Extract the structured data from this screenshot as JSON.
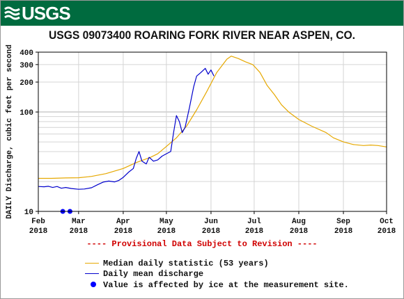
{
  "banner": {
    "logo_text": "USGS",
    "logo_icon": "usgs-wave-icon",
    "background": "#006b3f"
  },
  "chart_data": {
    "type": "line",
    "title": "USGS 09073400 ROARING FORK RIVER NEAR ASPEN, CO.",
    "ylabel": "DAILY Discharge, cubic feet per second",
    "yscale": "log",
    "ylim": [
      10,
      400
    ],
    "xlim": [
      "2018-02-01",
      "2018-10-01"
    ],
    "y_ticks": [
      10,
      100,
      200,
      300,
      400
    ],
    "y_tick_labels": [
      "10",
      "100",
      "200",
      "300",
      "400"
    ],
    "x_ticks": [
      "2018-02-01",
      "2018-03-01",
      "2018-04-01",
      "2018-05-01",
      "2018-06-01",
      "2018-07-01",
      "2018-08-01",
      "2018-09-01",
      "2018-10-01"
    ],
    "x_tick_labels": [
      [
        "Feb",
        "2018"
      ],
      [
        "Mar",
        "2018"
      ],
      [
        "Apr",
        "2018"
      ],
      [
        "May",
        "2018"
      ],
      [
        "Jun",
        "2018"
      ],
      [
        "Jul",
        "2018"
      ],
      [
        "Aug",
        "2018"
      ],
      [
        "Sep",
        "2018"
      ],
      [
        "Oct",
        "2018"
      ]
    ],
    "grid": true,
    "series": [
      {
        "name": "Median daily statistic (53 years)",
        "color": "#e6a800",
        "points": [
          [
            "2018-02-01",
            21.5
          ],
          [
            "2018-02-10",
            21.5
          ],
          [
            "2018-02-20",
            21.7
          ],
          [
            "2018-03-01",
            21.8
          ],
          [
            "2018-03-10",
            22.5
          ],
          [
            "2018-03-20",
            24
          ],
          [
            "2018-04-01",
            27
          ],
          [
            "2018-04-10",
            31
          ],
          [
            "2018-04-20",
            35
          ],
          [
            "2018-04-25",
            38
          ],
          [
            "2018-05-01",
            45
          ],
          [
            "2018-05-08",
            55
          ],
          [
            "2018-05-15",
            72
          ],
          [
            "2018-05-22",
            105
          ],
          [
            "2018-05-29",
            160
          ],
          [
            "2018-06-05",
            250
          ],
          [
            "2018-06-12",
            340
          ],
          [
            "2018-06-15",
            365
          ],
          [
            "2018-06-20",
            345
          ],
          [
            "2018-06-25",
            320
          ],
          [
            "2018-06-30",
            300
          ],
          [
            "2018-07-05",
            250
          ],
          [
            "2018-07-10",
            185
          ],
          [
            "2018-07-15",
            150
          ],
          [
            "2018-07-20",
            118
          ],
          [
            "2018-07-25",
            100
          ],
          [
            "2018-08-01",
            84
          ],
          [
            "2018-08-10",
            72
          ],
          [
            "2018-08-20",
            62
          ],
          [
            "2018-08-25",
            55
          ],
          [
            "2018-09-01",
            50
          ],
          [
            "2018-09-08",
            47
          ],
          [
            "2018-09-15",
            46
          ],
          [
            "2018-09-20",
            46.5
          ],
          [
            "2018-09-25",
            46
          ],
          [
            "2018-10-01",
            44.5
          ]
        ]
      },
      {
        "name": "Daily mean discharge",
        "color": "#0000cc",
        "points": [
          [
            "2018-02-01",
            17.8
          ],
          [
            "2018-02-05",
            17.7
          ],
          [
            "2018-02-08",
            17.9
          ],
          [
            "2018-02-11",
            17.4
          ],
          [
            "2018-02-14",
            17.8
          ],
          [
            "2018-02-17",
            17.1
          ],
          [
            "2018-02-20",
            17.4
          ],
          [
            "2018-02-24",
            17
          ],
          [
            "2018-03-01",
            16.7
          ],
          [
            "2018-03-05",
            16.8
          ],
          [
            "2018-03-10",
            17.3
          ],
          [
            "2018-03-14",
            18.5
          ],
          [
            "2018-03-18",
            19.7
          ],
          [
            "2018-03-22",
            20.2
          ],
          [
            "2018-03-26",
            19.8
          ],
          [
            "2018-03-29",
            20.5
          ],
          [
            "2018-04-01",
            22
          ],
          [
            "2018-04-05",
            25
          ],
          [
            "2018-04-08",
            27
          ],
          [
            "2018-04-10",
            34
          ],
          [
            "2018-04-12",
            40
          ],
          [
            "2018-04-14",
            32
          ],
          [
            "2018-04-17",
            30
          ],
          [
            "2018-04-19",
            35
          ],
          [
            "2018-04-22",
            32
          ],
          [
            "2018-04-25",
            33
          ],
          [
            "2018-04-28",
            36
          ],
          [
            "2018-05-01",
            38
          ],
          [
            "2018-05-04",
            40
          ],
          [
            "2018-05-06",
            62
          ],
          [
            "2018-05-08",
            92
          ],
          [
            "2018-05-10",
            80
          ],
          [
            "2018-05-12",
            62
          ],
          [
            "2018-05-14",
            70
          ],
          [
            "2018-05-17",
            110
          ],
          [
            "2018-05-20",
            180
          ],
          [
            "2018-05-22",
            230
          ],
          [
            "2018-05-25",
            250
          ],
          [
            "2018-05-28",
            275
          ],
          [
            "2018-05-30",
            240
          ],
          [
            "2018-06-01",
            265
          ],
          [
            "2018-06-03",
            230
          ]
        ]
      }
    ],
    "ice_affected_points": [
      [
        "2018-02-18",
        10
      ],
      [
        "2018-02-23",
        10
      ]
    ]
  },
  "provisional_note": "---- Provisional Data Subject to Revision ----",
  "legend": {
    "median_label": "Median daily statistic (53 years)",
    "daily_label": "Daily mean discharge",
    "ice_label": "Value is affected by ice at the measurement site.",
    "median_color": "#e6a800",
    "daily_color": "#0000cc",
    "ice_color": "#0000ff"
  }
}
